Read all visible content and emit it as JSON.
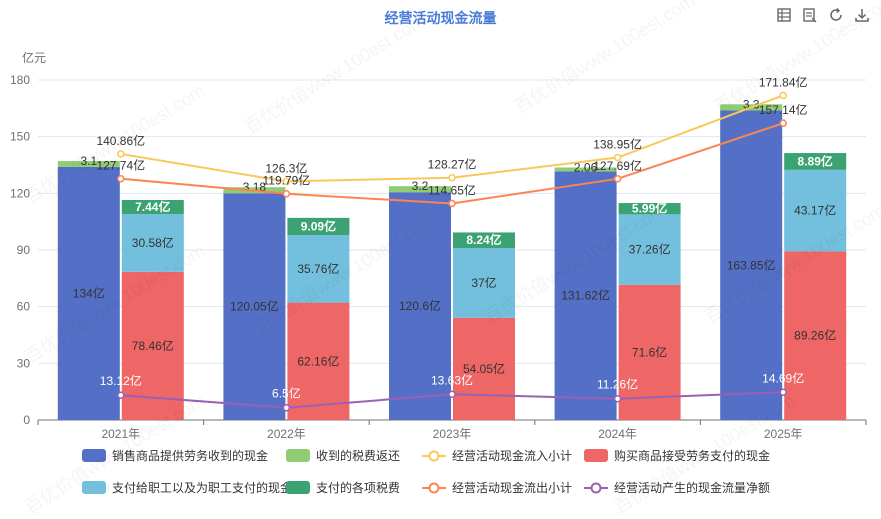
{
  "title": "经营活动现金流量",
  "toolbar": [
    {
      "name": "data-view-icon"
    },
    {
      "name": "data-view-icon-2"
    },
    {
      "name": "refresh-icon"
    },
    {
      "name": "download-icon"
    }
  ],
  "watermark": "百优价值www.100est.com",
  "chart_data": {
    "type": "bar",
    "title": "经营活动现金流量",
    "ylabel": "亿元",
    "ylim": [
      0,
      180
    ],
    "yticks": [
      0,
      30,
      60,
      90,
      120,
      150,
      180
    ],
    "categories": [
      "2021年",
      "2022年",
      "2023年",
      "2024年",
      "2025年"
    ],
    "unit_suffix": "亿",
    "stacks": [
      {
        "stack": "inflow",
        "series": [
          {
            "name": "销售商品提供劳务收到的现金",
            "color": "#5470c6",
            "values": [
              134,
              120.05,
              120.6,
              131.62,
              163.85
            ]
          },
          {
            "name": "收到的税费返还",
            "color": "#91cc75",
            "values": [
              3.1,
              3.18,
              3.2,
              2.06,
              3.3
            ]
          }
        ]
      },
      {
        "stack": "outflow",
        "series": [
          {
            "name": "购买商品接受劳务支付的现金",
            "color": "#ee6666",
            "values": [
              78.46,
              62.16,
              54.05,
              71.6,
              89.26
            ]
          },
          {
            "name": "支付给职工以及为职工支付的现金",
            "color": "#73c0de",
            "values": [
              30.58,
              35.76,
              37,
              37.26,
              43.17
            ]
          },
          {
            "name": "支付的各项税费",
            "color": "#3ba272",
            "values": [
              7.44,
              9.09,
              8.24,
              5.99,
              8.89
            ]
          }
        ]
      }
    ],
    "inflow_label_texts": [
      [
        "3.1",
        "3.18",
        "3.2",
        "2.06",
        "3.3"
      ]
    ],
    "lines": [
      {
        "name": "经营活动现金流入小计",
        "color": "#fac858",
        "values": [
          140.86,
          126.3,
          128.27,
          138.95,
          171.84
        ]
      },
      {
        "name": "经营活动现金流出小计",
        "color": "#fc8452",
        "values": [
          127.74,
          119.79,
          114.65,
          127.69,
          157.14
        ]
      },
      {
        "name": "经营活动产生的现金流量净额",
        "color": "#9a60b4",
        "values": [
          13.12,
          6.5,
          13.63,
          11.26,
          14.69
        ]
      }
    ],
    "legend_position": "bottom",
    "legend_rows": [
      [
        {
          "name": "销售商品提供劳务收到的现金",
          "kind": "bar",
          "color": "#5470c6"
        },
        {
          "name": "收到的税费返还",
          "kind": "bar",
          "color": "#91cc75"
        },
        {
          "name": "经营活动现金流入小计",
          "kind": "line",
          "color": "#fac858"
        },
        {
          "name": "购买商品接受劳务支付的现金",
          "kind": "bar",
          "color": "#ee6666"
        }
      ],
      [
        {
          "name": "支付给职工以及为职工支付的现金",
          "kind": "bar",
          "color": "#73c0de"
        },
        {
          "name": "支付的各项税费",
          "kind": "bar",
          "color": "#3ba272"
        },
        {
          "name": "经营活动现金流出小计",
          "kind": "line",
          "color": "#fc8452"
        },
        {
          "name": "经营活动产生的现金流量净额",
          "kind": "line",
          "color": "#9a60b4"
        }
      ]
    ],
    "grid": true
  }
}
